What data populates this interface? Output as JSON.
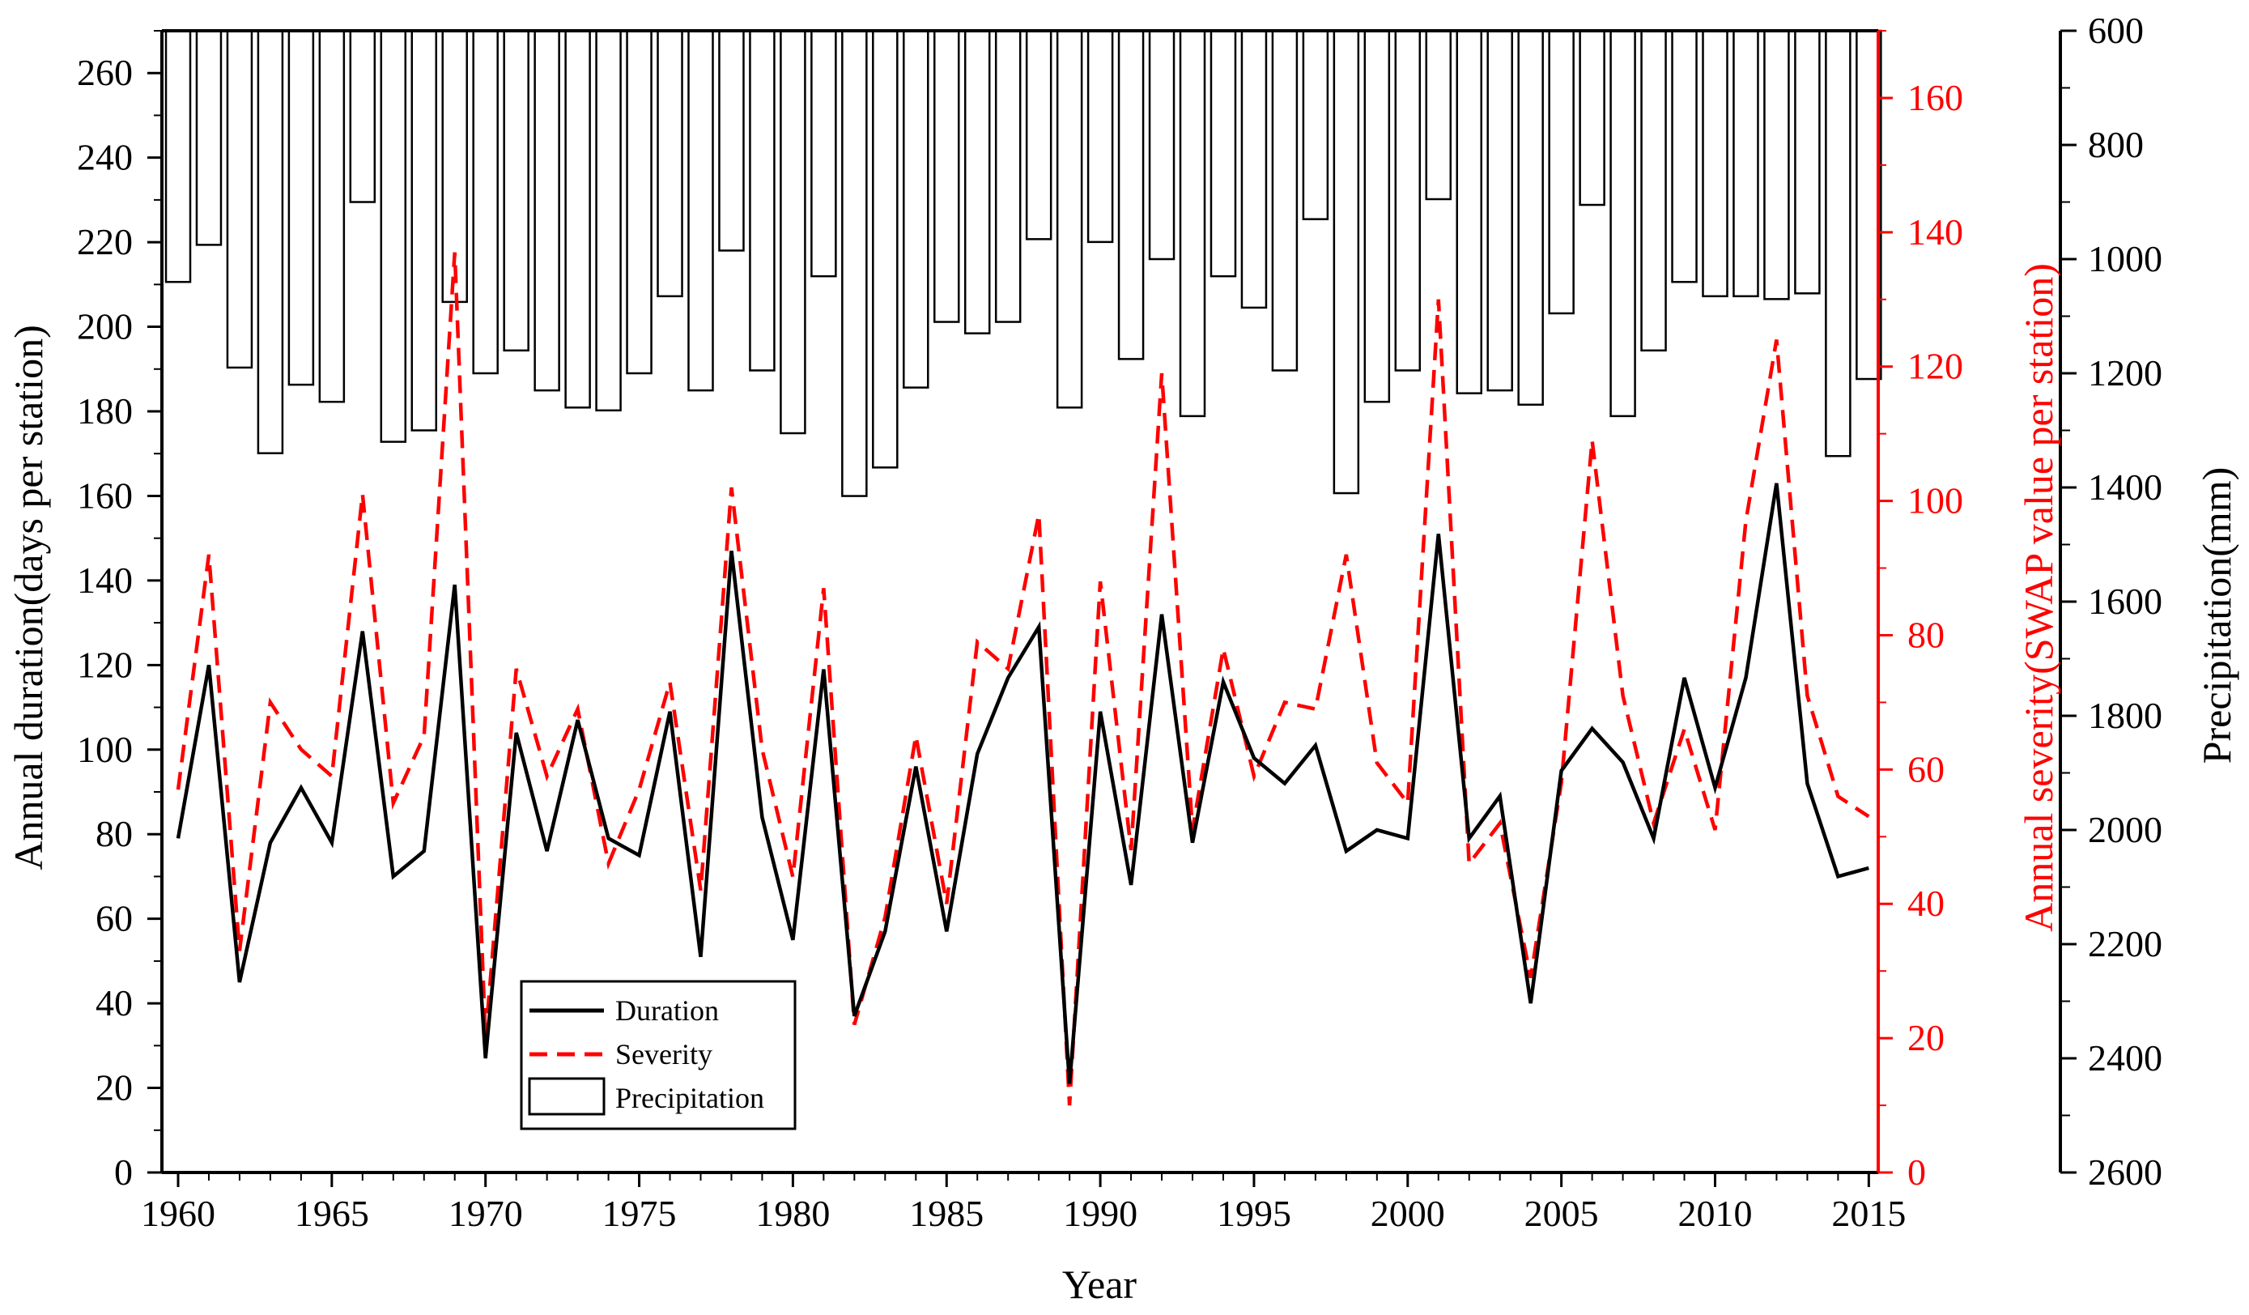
{
  "chart_data": {
    "type": "line",
    "xlabel": "Year",
    "ylabel_left": "Annual duration(days per station)",
    "ylabel_right_1": "Annual severity(SWAP value per station)",
    "ylabel_right_2": "Precipitation(mm)",
    "xlim": [
      1960,
      2015
    ],
    "ylim_left": [
      0,
      270
    ],
    "ylim_right_1": [
      0,
      170
    ],
    "ylim_right_2_inverted": [
      600,
      2600
    ],
    "x_ticks": [
      1960,
      1965,
      1970,
      1975,
      1980,
      1985,
      1990,
      1995,
      2000,
      2005,
      2010,
      2015
    ],
    "y_left_ticks": [
      0,
      20,
      40,
      60,
      80,
      100,
      120,
      140,
      160,
      180,
      200,
      220,
      240,
      260
    ],
    "y_right_1_ticks": [
      0,
      20,
      40,
      60,
      80,
      100,
      120,
      140,
      160
    ],
    "y_right_2_ticks": [
      600,
      800,
      1000,
      1200,
      1400,
      1600,
      1800,
      2000,
      2200,
      2400,
      2600
    ],
    "years": [
      1960,
      1961,
      1962,
      1963,
      1964,
      1965,
      1966,
      1967,
      1968,
      1969,
      1970,
      1971,
      1972,
      1973,
      1974,
      1975,
      1976,
      1977,
      1978,
      1979,
      1980,
      1981,
      1982,
      1983,
      1984,
      1985,
      1986,
      1987,
      1988,
      1989,
      1990,
      1991,
      1992,
      1993,
      1994,
      1995,
      1996,
      1997,
      1998,
      1999,
      2000,
      2001,
      2002,
      2003,
      2004,
      2005,
      2006,
      2007,
      2008,
      2009,
      2010,
      2011,
      2012,
      2013,
      2014,
      2015
    ],
    "series": [
      {
        "name": "Duration",
        "axis": "left",
        "style": "solid",
        "color": "#000000",
        "values": [
          79,
          120,
          45,
          78,
          91,
          78,
          128,
          70,
          76,
          139,
          27,
          104,
          76,
          107,
          79,
          75,
          109,
          51,
          147,
          84,
          55,
          119,
          37,
          57,
          96,
          57,
          99,
          117,
          129,
          21,
          109,
          68,
          132,
          78,
          116,
          98,
          92,
          101,
          76,
          81,
          79,
          151,
          79,
          89,
          40,
          95,
          105,
          97,
          79,
          117,
          91,
          117,
          163,
          92,
          70,
          72
        ]
      },
      {
        "name": "Severity",
        "axis": "right_1",
        "style": "dashed",
        "color": "#ff0000",
        "values": [
          57,
          92,
          33,
          70,
          63,
          59,
          101,
          55,
          65,
          137,
          20,
          75,
          59,
          69,
          46,
          57,
          73,
          42,
          102,
          63,
          44,
          87,
          22,
          38,
          65,
          40,
          79,
          75,
          98,
          10,
          88,
          48,
          119,
          51,
          78,
          59,
          70,
          69,
          92,
          61,
          55,
          130,
          46,
          52,
          29,
          58,
          109,
          71,
          52,
          66,
          51,
          97,
          124,
          71,
          56,
          53
        ]
      },
      {
        "name": "Precipitation",
        "axis": "right_2",
        "style": "bar",
        "color": "#000000",
        "values": [
          1040,
          975,
          1190,
          1340,
          1220,
          1250,
          900,
          1320,
          1300,
          1075,
          1200,
          1160,
          1230,
          1260,
          1265,
          1200,
          1065,
          1230,
          985,
          1195,
          1305,
          1030,
          1415,
          1365,
          1225,
          1110,
          1130,
          1110,
          965,
          1260,
          970,
          1175,
          1000,
          1275,
          1030,
          1085,
          1195,
          930,
          1410,
          1250,
          1195,
          895,
          1235,
          1230,
          1255,
          1095,
          905,
          1275,
          1160,
          1040,
          1065,
          1065,
          1070,
          1060,
          1345,
          1210
        ]
      }
    ],
    "legend": {
      "position": "bottom-left",
      "items": [
        "Duration",
        "Severity",
        "Precipitation"
      ]
    }
  }
}
